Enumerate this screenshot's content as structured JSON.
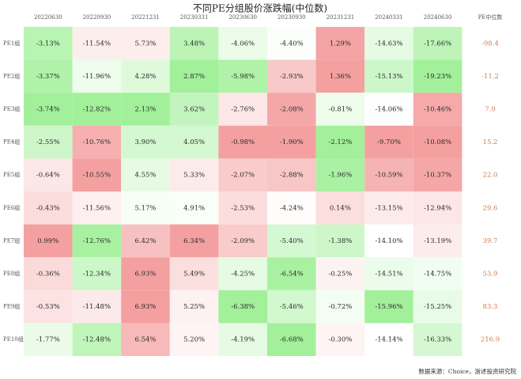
{
  "chart_data": {
    "type": "heatmap",
    "title": "不同PE分组股价涨跌幅(中位数)",
    "columns": [
      "20220630",
      "20220930",
      "20221231",
      "20230331",
      "20230630",
      "20230930",
      "20231231",
      "20240331",
      "20240630"
    ],
    "extra_column_header": "PE中位数",
    "rows": [
      "PE1组",
      "PE2组",
      "PE3组",
      "PE4组",
      "PE5组",
      "PE6组",
      "PE7组",
      "PE8组",
      "PE9组",
      "PE10组"
    ],
    "values": [
      [
        -3.13,
        -11.54,
        5.73,
        3.48,
        -4.06,
        -4.4,
        1.29,
        -14.63,
        -17.66
      ],
      [
        -3.37,
        -11.96,
        4.28,
        2.87,
        -5.98,
        -2.93,
        1.36,
        -15.13,
        -19.23
      ],
      [
        -3.74,
        -12.82,
        2.13,
        3.62,
        -2.76,
        -2.08,
        -0.81,
        -14.06,
        -10.46
      ],
      [
        -2.55,
        -10.76,
        3.9,
        4.05,
        -0.98,
        -1.9,
        -2.12,
        -9.7,
        -10.08
      ],
      [
        -0.64,
        -10.55,
        4.55,
        5.33,
        -2.07,
        -2.88,
        -1.96,
        -10.59,
        -10.37
      ],
      [
        -0.43,
        -11.56,
        5.17,
        4.91,
        -2.53,
        -4.24,
        0.14,
        -13.15,
        -12.94
      ],
      [
        0.99,
        -12.76,
        6.42,
        6.34,
        -2.09,
        -5.4,
        -1.38,
        -14.1,
        -13.19
      ],
      [
        -0.36,
        -12.34,
        6.93,
        5.49,
        -4.25,
        -6.54,
        -0.25,
        -14.51,
        -14.75
      ],
      [
        -0.53,
        -11.48,
        6.93,
        5.25,
        -6.38,
        -5.46,
        -0.72,
        -15.96,
        -15.25
      ],
      [
        -1.77,
        -12.48,
        6.54,
        5.2,
        -4.19,
        -6.68,
        -0.3,
        -14.14,
        -16.33
      ]
    ],
    "labels": [
      [
        "-3.13%",
        "-11.54%",
        "5.73%",
        "3.48%",
        "-4.06%",
        "-4.40%",
        "1.29%",
        "-14.63%",
        "-17.66%"
      ],
      [
        "-3.37%",
        "-11.96%",
        "4.28%",
        "2.87%",
        "-5.98%",
        "-2.93%",
        "1.36%",
        "-15.13%",
        "-19.23%"
      ],
      [
        "-3.74%",
        "-12.82%",
        "2.13%",
        "3.62%",
        "-2.76%",
        "-2.08%",
        "-0.81%",
        "-14.06%",
        "-10.46%"
      ],
      [
        "-2.55%",
        "-10.76%",
        "3.90%",
        "4.05%",
        "-0.98%",
        "-1.90%",
        "-2.12%",
        "-9.70%",
        "-10.08%"
      ],
      [
        "-0.64%",
        "-10.55%",
        "4.55%",
        "5.33%",
        "-2.07%",
        "-2.88%",
        "-1.96%",
        "-10.59%",
        "-10.37%"
      ],
      [
        "-0.43%",
        "-11.56%",
        "5.17%",
        "4.91%",
        "-2.53%",
        "-4.24%",
        "0.14%",
        "-13.15%",
        "-12.94%"
      ],
      [
        "0.99%",
        "-12.76%",
        "6.42%",
        "6.34%",
        "-2.09%",
        "-5.40%",
        "-1.38%",
        "-14.10%",
        "-13.19%"
      ],
      [
        "-0.36%",
        "-12.34%",
        "6.93%",
        "5.49%",
        "-4.25%",
        "-6.54%",
        "-0.25%",
        "-14.51%",
        "-14.75%"
      ],
      [
        "-0.53%",
        "-11.48%",
        "6.93%",
        "5.25%",
        "-6.38%",
        "-5.46%",
        "-0.72%",
        "-15.96%",
        "-15.25%"
      ],
      [
        "-1.77%",
        "-12.48%",
        "6.54%",
        "5.20%",
        "-4.19%",
        "-6.68%",
        "-0.30%",
        "-14.14%",
        "-16.33%"
      ]
    ],
    "pe_median": [
      "-98.4",
      "-11.2",
      "7.9",
      "15.2",
      "22.0",
      "29.6",
      "39.7",
      "53.9",
      "83.3",
      "216.9"
    ],
    "color_scale": "per column: highest value red, lowest value green, middle white",
    "colors": {
      "high": "#f4a0a0",
      "mid": "#ffffff",
      "low": "#a2f09a",
      "median_text": "#d07f4f"
    },
    "source": "数据来源：Choice，浙述投资研究院"
  }
}
